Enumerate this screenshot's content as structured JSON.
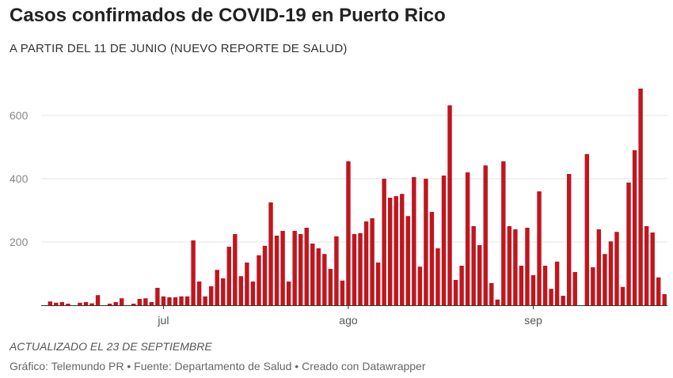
{
  "title": "Casos confirmados de COVID-19 en Puerto Rico",
  "subtitle": "A PARTIR DEL 11 DE JUNIO (NUEVO REPORTE DE SALUD)",
  "footnote": "ACTUALIZADO EL 23 DE SEPTIEMBRE",
  "credits": "Gráfico: Telemundo PR • Fuente: Departamento de Salud • Creado con Datawrapper",
  "chart_data": {
    "type": "bar",
    "bar_color": "#c0161e",
    "grid": true,
    "ylim": [
      0,
      700
    ],
    "yticks": [
      200,
      400,
      600
    ],
    "xticks": [
      {
        "label": "jul",
        "index": 20
      },
      {
        "label": "ago",
        "index": 51
      },
      {
        "label": "sep",
        "index": 82
      }
    ],
    "values": [
      0,
      12,
      8,
      10,
      5,
      0,
      8,
      10,
      6,
      32,
      0,
      5,
      10,
      22,
      0,
      5,
      20,
      22,
      10,
      55,
      28,
      25,
      25,
      28,
      28,
      205,
      75,
      28,
      60,
      112,
      85,
      185,
      225,
      92,
      135,
      75,
      158,
      188,
      325,
      220,
      235,
      75,
      235,
      225,
      245,
      195,
      180,
      162,
      115,
      218,
      78,
      455,
      225,
      228,
      265,
      275,
      135,
      400,
      340,
      345,
      352,
      282,
      405,
      122,
      400,
      295,
      180,
      410,
      632,
      80,
      125,
      420,
      250,
      190,
      442,
      70,
      18,
      455,
      250,
      240,
      125,
      245,
      95,
      360,
      125,
      52,
      138,
      30,
      415,
      105,
      0,
      478,
      120,
      240,
      162,
      202,
      232,
      58,
      388,
      490,
      685,
      250,
      230,
      88,
      35
    ]
  }
}
